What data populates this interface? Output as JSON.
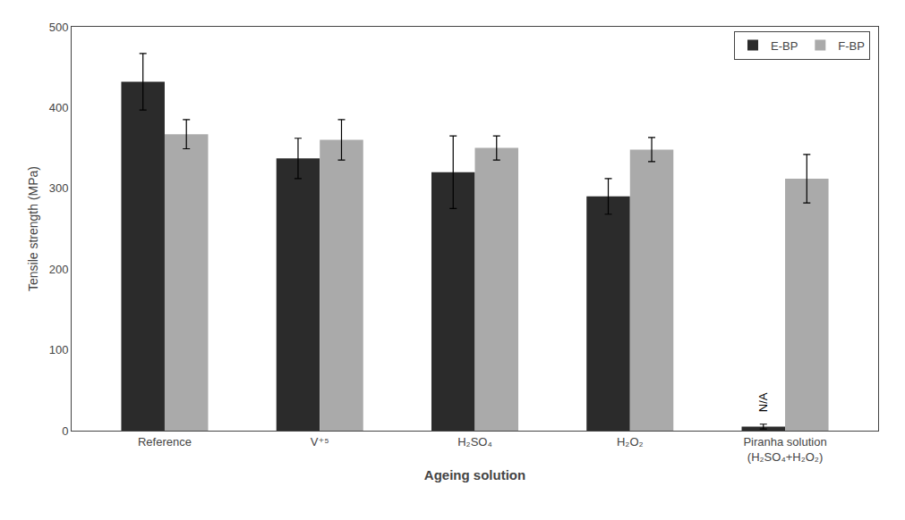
{
  "chart_data": {
    "type": "bar",
    "categories": [
      "Reference",
      "V⁺⁵",
      "H₂SO₄",
      "H₂O₂",
      "Piranha solution\n(H₂SO₄+H₂O₂)"
    ],
    "series": [
      {
        "name": "E-BP",
        "color": "#2b2b2b",
        "values": [
          432,
          337,
          320,
          290,
          5
        ],
        "errors": [
          35,
          25,
          45,
          22,
          3
        ]
      },
      {
        "name": "F-BP",
        "color": "#aaaaaa",
        "values": [
          367,
          360,
          350,
          348,
          312
        ],
        "errors": [
          18,
          25,
          15,
          15,
          30
        ]
      }
    ],
    "xlabel": "Ageing solution",
    "ylabel": "Tensile strength (MPa)",
    "ylim": [
      0,
      500
    ],
    "yticks": [
      0,
      100,
      200,
      300,
      400,
      500
    ],
    "grid": false,
    "legend": "upper right",
    "annotations": [
      {
        "text": "N/A",
        "category": "Piranha solution\n(H₂SO₄+H₂O₂)",
        "series": "E-BP"
      }
    ]
  }
}
